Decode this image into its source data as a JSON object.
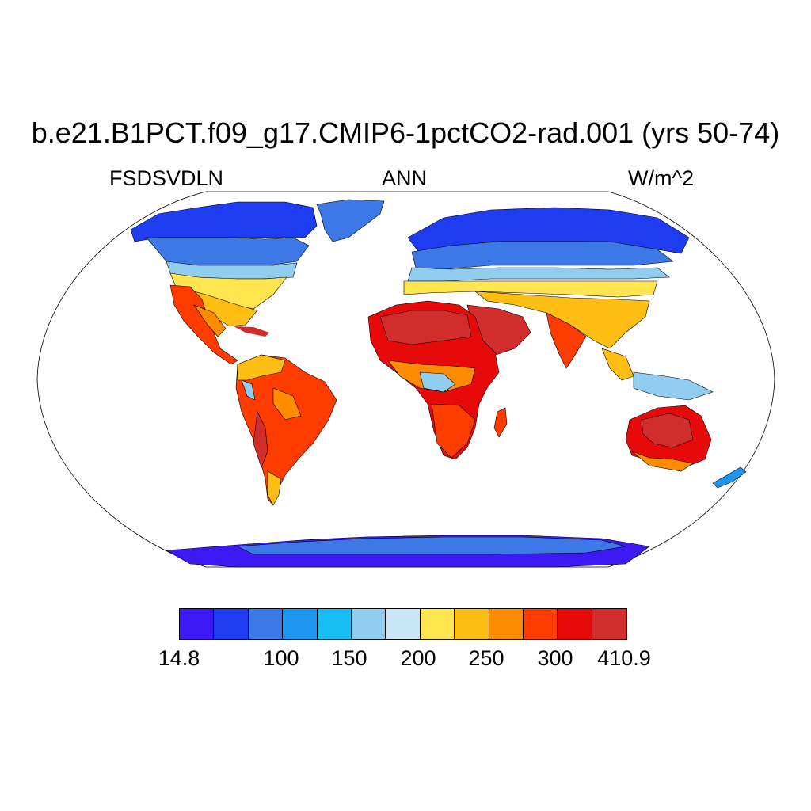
{
  "title": "b.e21.B1PCT.f09_g17.CMIP6-1pctCO2-rad.001 (yrs 50-74)",
  "left_label": "FSDSVDLN",
  "center_label": "ANN",
  "right_label": "W/m^2",
  "projection": "Robinson",
  "colorbar": {
    "colors": [
      "#3c19f5",
      "#1e3cf0",
      "#3c78e6",
      "#1e96f0",
      "#18bef5",
      "#90cdee",
      "#c8e6f5",
      "#ffe650",
      "#ffbe14",
      "#ff8c00",
      "#ff3c00",
      "#e60a0a",
      "#d22d2d"
    ],
    "labels": [
      "14.8",
      "100",
      "150",
      "200",
      "250",
      "300",
      "410.9"
    ]
  },
  "regions": [
    {
      "name": "North America",
      "colors": [
        "#1e3cf0",
        "#3c78e6",
        "#90cdee",
        "#ffe650",
        "#ffbe14",
        "#ff8c00",
        "#ff3c00"
      ]
    },
    {
      "name": "Greenland",
      "colors": [
        "#3c78e6"
      ]
    },
    {
      "name": "South America",
      "colors": [
        "#ffbe14",
        "#ff8c00",
        "#ff3c00",
        "#d22d2d",
        "#90cdee"
      ]
    },
    {
      "name": "Europe and Asia",
      "colors": [
        "#1e3cf0",
        "#3c78e6",
        "#1e96f0",
        "#90cdee",
        "#ffe650",
        "#ffbe14",
        "#ff8c00",
        "#ff3c00",
        "#e60a0a"
      ]
    },
    {
      "name": "Africa",
      "colors": [
        "#ffbe14",
        "#ff8c00",
        "#ff3c00",
        "#e60a0a",
        "#d22d2d",
        "#90cdee"
      ]
    },
    {
      "name": "Australia",
      "colors": [
        "#ff8c00",
        "#ff3c00",
        "#e60a0a",
        "#d22d2d"
      ]
    },
    {
      "name": "Antarctica",
      "colors": [
        "#3c19f5",
        "#1e3cf0",
        "#3c78e6"
      ]
    }
  ]
}
